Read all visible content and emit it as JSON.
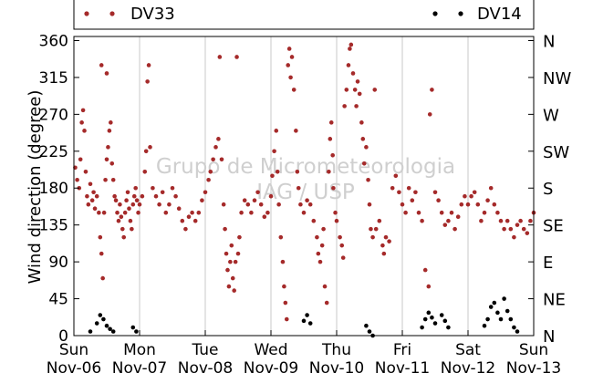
{
  "chart_data": {
    "type": "scatter",
    "ylabel": "Wind direction (degree)",
    "ylim": [
      0,
      365
    ],
    "yticks": [
      0,
      45,
      90,
      135,
      180,
      225,
      270,
      315,
      360
    ],
    "y2ticks": [
      {
        "value": 0,
        "label": "N"
      },
      {
        "value": 45,
        "label": "NE"
      },
      {
        "value": 90,
        "label": "E"
      },
      {
        "value": 135,
        "label": "SE"
      },
      {
        "value": 180,
        "label": "S"
      },
      {
        "value": 225,
        "label": "SW"
      },
      {
        "value": 270,
        "label": "W"
      },
      {
        "value": 315,
        "label": "NW"
      },
      {
        "value": 360,
        "label": "N"
      }
    ],
    "xticks": [
      {
        "day": "Sun",
        "date": "Nov-06"
      },
      {
        "day": "Mon",
        "date": "Nov-07"
      },
      {
        "day": "Tue",
        "date": "Nov-08"
      },
      {
        "day": "Wed",
        "date": "Nov-09"
      },
      {
        "day": "Thu",
        "date": "Nov-10"
      },
      {
        "day": "Fri",
        "date": "Nov-11"
      },
      {
        "day": "Sat",
        "date": "Nov-12"
      },
      {
        "day": "Sun",
        "date": "Nov-13"
      }
    ],
    "grid": "vertical",
    "legend_placement": "top",
    "watermark": [
      "Grupo de Micrometeorologia",
      "IAG / USP"
    ],
    "series": [
      {
        "name": "DV33",
        "color": "#a52a2a",
        "points": [
          [
            0.02,
            205
          ],
          [
            0.05,
            190
          ],
          [
            0.08,
            180
          ],
          [
            0.1,
            215
          ],
          [
            0.12,
            260
          ],
          [
            0.14,
            275
          ],
          [
            0.16,
            250
          ],
          [
            0.18,
            200
          ],
          [
            0.2,
            170
          ],
          [
            0.22,
            160
          ],
          [
            0.25,
            185
          ],
          [
            0.28,
            165
          ],
          [
            0.3,
            175
          ],
          [
            0.32,
            155
          ],
          [
            0.35,
            170
          ],
          [
            0.38,
            150
          ],
          [
            0.4,
            120
          ],
          [
            0.42,
            100
          ],
          [
            0.44,
            70
          ],
          [
            0.46,
            150
          ],
          [
            0.48,
            190
          ],
          [
            0.5,
            215
          ],
          [
            0.52,
            230
          ],
          [
            0.54,
            250
          ],
          [
            0.56,
            260
          ],
          [
            0.58,
            210
          ],
          [
            0.6,
            190
          ],
          [
            0.62,
            170
          ],
          [
            0.64,
            165
          ],
          [
            0.66,
            150
          ],
          [
            0.68,
            140
          ],
          [
            0.7,
            160
          ],
          [
            0.72,
            145
          ],
          [
            0.74,
            130
          ],
          [
            0.76,
            120
          ],
          [
            0.78,
            150
          ],
          [
            0.8,
            165
          ],
          [
            0.82,
            175
          ],
          [
            0.84,
            155
          ],
          [
            0.86,
            140
          ],
          [
            0.88,
            130
          ],
          [
            0.9,
            160
          ],
          [
            0.92,
            170
          ],
          [
            0.94,
            180
          ],
          [
            0.96,
            165
          ],
          [
            0.98,
            150
          ],
          [
            0.42,
            330
          ],
          [
            0.5,
            320
          ],
          [
            1.0,
            160
          ],
          [
            1.04,
            170
          ],
          [
            1.08,
            200
          ],
          [
            1.1,
            225
          ],
          [
            1.12,
            310
          ],
          [
            1.14,
            330
          ],
          [
            1.16,
            230
          ],
          [
            1.2,
            180
          ],
          [
            1.25,
            170
          ],
          [
            1.3,
            160
          ],
          [
            1.35,
            175
          ],
          [
            1.4,
            150
          ],
          [
            1.45,
            160
          ],
          [
            1.5,
            180
          ],
          [
            1.55,
            170
          ],
          [
            1.6,
            155
          ],
          [
            1.65,
            140
          ],
          [
            1.7,
            130
          ],
          [
            1.75,
            145
          ],
          [
            1.8,
            150
          ],
          [
            1.85,
            140
          ],
          [
            1.9,
            150
          ],
          [
            1.95,
            165
          ],
          [
            2.0,
            175
          ],
          [
            2.05,
            190
          ],
          [
            2.08,
            200
          ],
          [
            2.12,
            215
          ],
          [
            2.16,
            230
          ],
          [
            2.2,
            240
          ],
          [
            2.22,
            340
          ],
          [
            2.25,
            215
          ],
          [
            2.28,
            160
          ],
          [
            2.3,
            130
          ],
          [
            2.32,
            100
          ],
          [
            2.34,
            80
          ],
          [
            2.36,
            60
          ],
          [
            2.38,
            90
          ],
          [
            2.4,
            110
          ],
          [
            2.42,
            70
          ],
          [
            2.44,
            55
          ],
          [
            2.46,
            90
          ],
          [
            2.48,
            340
          ],
          [
            2.5,
            100
          ],
          [
            2.52,
            120
          ],
          [
            2.55,
            150
          ],
          [
            2.6,
            165
          ],
          [
            2.65,
            160
          ],
          [
            2.7,
            150
          ],
          [
            2.75,
            165
          ],
          [
            2.8,
            175
          ],
          [
            2.85,
            160
          ],
          [
            2.9,
            145
          ],
          [
            2.95,
            150
          ],
          [
            3.0,
            170
          ],
          [
            3.02,
            195
          ],
          [
            3.05,
            225
          ],
          [
            3.08,
            250
          ],
          [
            3.1,
            200
          ],
          [
            3.12,
            160
          ],
          [
            3.15,
            120
          ],
          [
            3.18,
            90
          ],
          [
            3.2,
            60
          ],
          [
            3.22,
            40
          ],
          [
            3.24,
            20
          ],
          [
            3.26,
            330
          ],
          [
            3.28,
            350
          ],
          [
            3.3,
            315
          ],
          [
            3.32,
            340
          ],
          [
            3.35,
            300
          ],
          [
            3.38,
            250
          ],
          [
            3.4,
            200
          ],
          [
            3.42,
            180
          ],
          [
            3.45,
            160
          ],
          [
            3.5,
            150
          ],
          [
            3.55,
            165
          ],
          [
            3.6,
            160
          ],
          [
            3.65,
            140
          ],
          [
            3.7,
            120
          ],
          [
            3.72,
            100
          ],
          [
            3.75,
            90
          ],
          [
            3.78,
            110
          ],
          [
            3.8,
            130
          ],
          [
            3.82,
            60
          ],
          [
            3.85,
            40
          ],
          [
            3.88,
            200
          ],
          [
            3.9,
            240
          ],
          [
            3.92,
            260
          ],
          [
            3.94,
            220
          ],
          [
            3.95,
            180
          ],
          [
            3.98,
            150
          ],
          [
            4.0,
            140
          ],
          [
            4.05,
            120
          ],
          [
            4.08,
            110
          ],
          [
            4.1,
            95
          ],
          [
            4.12,
            280
          ],
          [
            4.15,
            300
          ],
          [
            4.18,
            330
          ],
          [
            4.2,
            350
          ],
          [
            4.22,
            355
          ],
          [
            4.25,
            320
          ],
          [
            4.28,
            300
          ],
          [
            4.3,
            280
          ],
          [
            4.32,
            310
          ],
          [
            4.35,
            295
          ],
          [
            4.38,
            260
          ],
          [
            4.4,
            240
          ],
          [
            4.42,
            210
          ],
          [
            4.45,
            230
          ],
          [
            4.48,
            190
          ],
          [
            4.5,
            160
          ],
          [
            4.52,
            130
          ],
          [
            4.55,
            120
          ],
          [
            4.58,
            300
          ],
          [
            4.6,
            130
          ],
          [
            4.65,
            140
          ],
          [
            4.7,
            110
          ],
          [
            4.72,
            100
          ],
          [
            4.75,
            120
          ],
          [
            4.8,
            115
          ],
          [
            4.85,
            180
          ],
          [
            4.9,
            195
          ],
          [
            4.95,
            175
          ],
          [
            5.0,
            160
          ],
          [
            5.05,
            150
          ],
          [
            5.1,
            180
          ],
          [
            5.15,
            165
          ],
          [
            5.2,
            175
          ],
          [
            5.25,
            150
          ],
          [
            5.3,
            140
          ],
          [
            5.35,
            80
          ],
          [
            5.4,
            60
          ],
          [
            5.42,
            270
          ],
          [
            5.45,
            300
          ],
          [
            5.5,
            175
          ],
          [
            5.55,
            165
          ],
          [
            5.6,
            150
          ],
          [
            5.65,
            135
          ],
          [
            5.7,
            140
          ],
          [
            5.75,
            150
          ],
          [
            5.8,
            130
          ],
          [
            5.85,
            145
          ],
          [
            5.9,
            160
          ],
          [
            5.95,
            170
          ],
          [
            6.0,
            160
          ],
          [
            6.05,
            170
          ],
          [
            6.1,
            175
          ],
          [
            6.15,
            160
          ],
          [
            6.2,
            140
          ],
          [
            6.25,
            150
          ],
          [
            6.3,
            165
          ],
          [
            6.35,
            180
          ],
          [
            6.4,
            160
          ],
          [
            6.45,
            150
          ],
          [
            6.5,
            140
          ],
          [
            6.55,
            130
          ],
          [
            6.6,
            140
          ],
          [
            6.65,
            130
          ],
          [
            6.7,
            120
          ],
          [
            6.75,
            135
          ],
          [
            6.8,
            140
          ],
          [
            6.85,
            130
          ],
          [
            6.9,
            125
          ],
          [
            6.95,
            140
          ],
          [
            7.0,
            150
          ]
        ]
      },
      {
        "name": "DV14",
        "color": "#000000",
        "points": [
          [
            0.25,
            5
          ],
          [
            0.35,
            15
          ],
          [
            0.4,
            25
          ],
          [
            0.45,
            20
          ],
          [
            0.5,
            12
          ],
          [
            0.55,
            8
          ],
          [
            0.6,
            5
          ],
          [
            0.9,
            10
          ],
          [
            0.95,
            5
          ],
          [
            3.5,
            18
          ],
          [
            3.55,
            25
          ],
          [
            3.6,
            15
          ],
          [
            4.45,
            12
          ],
          [
            4.5,
            5
          ],
          [
            4.55,
            0
          ],
          [
            5.3,
            10
          ],
          [
            5.35,
            20
          ],
          [
            5.4,
            28
          ],
          [
            5.45,
            22
          ],
          [
            5.5,
            15
          ],
          [
            5.6,
            25
          ],
          [
            5.65,
            18
          ],
          [
            5.7,
            10
          ],
          [
            6.25,
            12
          ],
          [
            6.3,
            20
          ],
          [
            6.35,
            35
          ],
          [
            6.4,
            40
          ],
          [
            6.45,
            28
          ],
          [
            6.5,
            20
          ],
          [
            6.55,
            45
          ],
          [
            6.6,
            30
          ],
          [
            6.65,
            20
          ],
          [
            6.7,
            10
          ],
          [
            6.75,
            5
          ]
        ]
      }
    ]
  }
}
